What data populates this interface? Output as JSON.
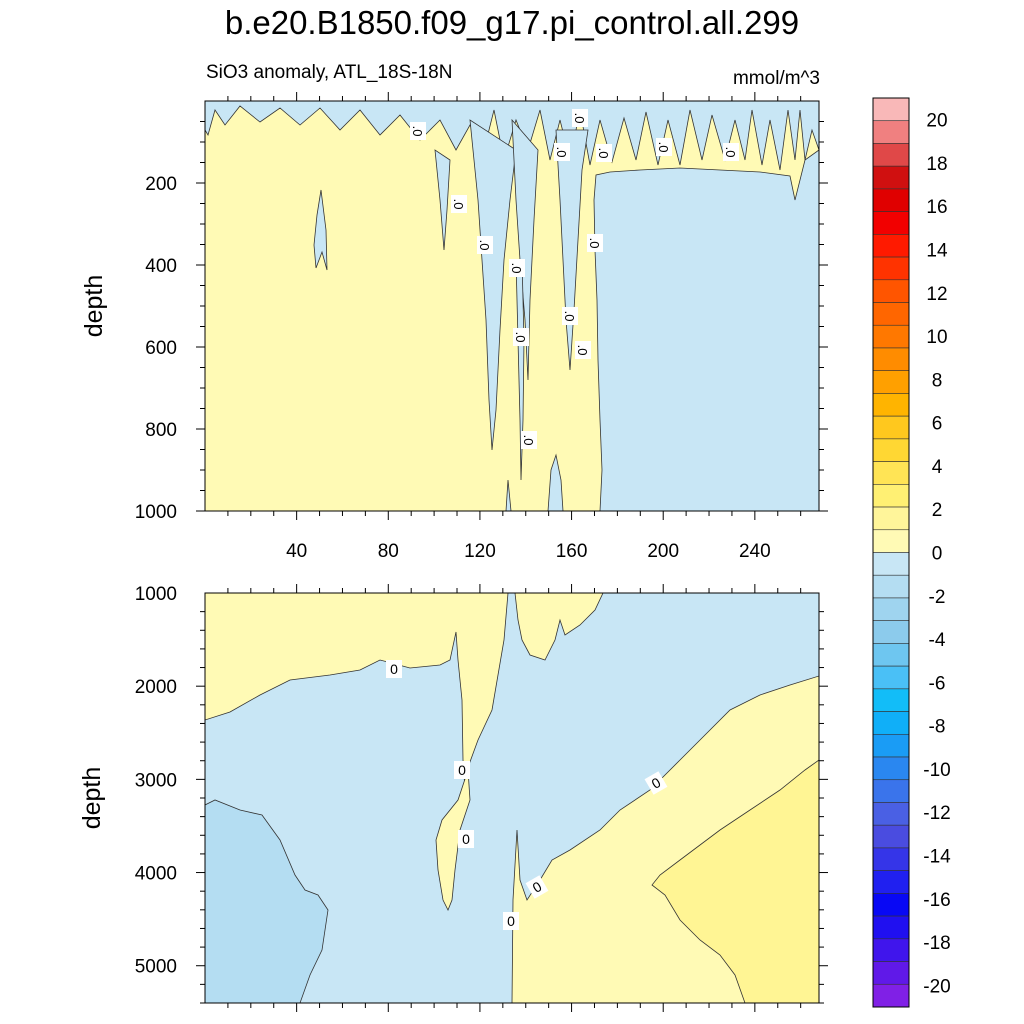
{
  "chart_data": {
    "type": "heatmap",
    "title": "b.e20.B1850.f09_g17.pi_control.all.299",
    "subtitle": "SiO3 anomaly, ATL_18S-18N",
    "units": "mmol/m^3",
    "colorbar": {
      "labels": [
        "20",
        "18",
        "16",
        "14",
        "12",
        "10",
        "8",
        "6",
        "4",
        "2",
        "0",
        "-2",
        "-4",
        "-6",
        "-8",
        "-10",
        "-12",
        "-14",
        "-16",
        "-18",
        "-20"
      ],
      "colors": [
        "#f9b8b8",
        "#f08080",
        "#e04848",
        "#d01010",
        "#e00000",
        "#f20000",
        "#ff1a00",
        "#ff3300",
        "#ff5500",
        "#ff6600",
        "#ff7800",
        "#ff8c00",
        "#ffa000",
        "#ffb400",
        "#ffc81e",
        "#ffd733",
        "#ffe455",
        "#fff073",
        "#fff59a",
        "#fffab5",
        "#c8e6f5",
        "#b4ddf2",
        "#9fd4ef",
        "#8ccbec",
        "#6ec6f0",
        "#4ac0f6",
        "#12bdf8",
        "#10aff8",
        "#1a9cf5",
        "#2a87f0",
        "#3a74eb",
        "#4a60e4",
        "#4a4ce0",
        "#3535e8",
        "#2020f0",
        "#0808f5",
        "#2010f0",
        "#4015ec",
        "#6019e8",
        "#8020e6"
      ],
      "min": -20,
      "max": 20
    },
    "panels": [
      {
        "ylabel": "depth",
        "x_ticks": [
          "40",
          "80",
          "120",
          "160",
          "200",
          "240"
        ],
        "x_tick_values": [
          40,
          80,
          120,
          160,
          200,
          240
        ],
        "y_ticks": [
          "200",
          "400",
          "600",
          "800",
          "1000"
        ],
        "y_tick_values": [
          200,
          400,
          600,
          800,
          1000
        ],
        "xlim": [
          0,
          268
        ],
        "ylim": [
          0,
          1000
        ],
        "contour_labels": [
          ".0",
          ".0",
          ".0",
          ".0",
          ".0",
          ".0",
          ".0",
          ".0",
          ".0",
          ".0",
          ".0",
          ".0",
          ".0",
          ".0",
          ".0"
        ]
      },
      {
        "ylabel": "depth",
        "y_ticks": [
          "1000",
          "2000",
          "3000",
          "4000",
          "5000"
        ],
        "y_tick_values": [
          1000,
          2000,
          3000,
          4000,
          5000
        ],
        "xlim": [
          0,
          268
        ],
        "ylim": [
          1000,
          5400
        ],
        "contour_labels": [
          "0",
          "0",
          "0",
          "0",
          "0",
          "0"
        ]
      }
    ]
  }
}
